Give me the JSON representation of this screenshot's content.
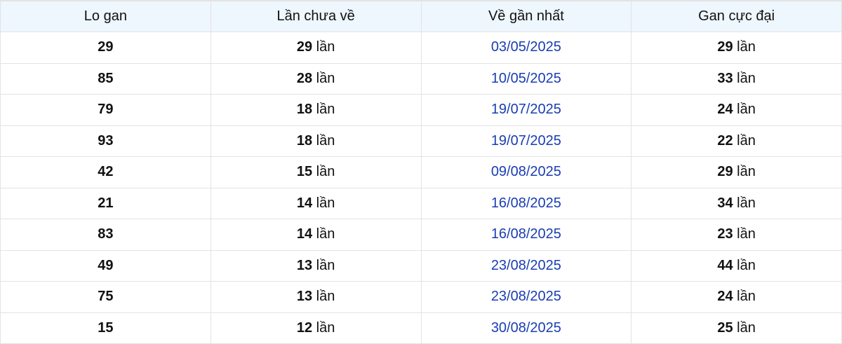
{
  "headers": [
    "Lo gan",
    "Lần chưa về",
    "Về gần nhất",
    "Gan cực đại"
  ],
  "unit": "lần",
  "date_color": "#1a3db3",
  "rows": [
    {
      "lo": "29",
      "chua_ve": "29",
      "gan_nhat": "03/05/2025",
      "cuc_dai": "29"
    },
    {
      "lo": "85",
      "chua_ve": "28",
      "gan_nhat": "10/05/2025",
      "cuc_dai": "33"
    },
    {
      "lo": "79",
      "chua_ve": "18",
      "gan_nhat": "19/07/2025",
      "cuc_dai": "24"
    },
    {
      "lo": "93",
      "chua_ve": "18",
      "gan_nhat": "19/07/2025",
      "cuc_dai": "22"
    },
    {
      "lo": "42",
      "chua_ve": "15",
      "gan_nhat": "09/08/2025",
      "cuc_dai": "29"
    },
    {
      "lo": "21",
      "chua_ve": "14",
      "gan_nhat": "16/08/2025",
      "cuc_dai": "34"
    },
    {
      "lo": "83",
      "chua_ve": "14",
      "gan_nhat": "16/08/2025",
      "cuc_dai": "23"
    },
    {
      "lo": "49",
      "chua_ve": "13",
      "gan_nhat": "23/08/2025",
      "cuc_dai": "44"
    },
    {
      "lo": "75",
      "chua_ve": "13",
      "gan_nhat": "23/08/2025",
      "cuc_dai": "24"
    },
    {
      "lo": "15",
      "chua_ve": "12",
      "gan_nhat": "30/08/2025",
      "cuc_dai": "25"
    }
  ]
}
